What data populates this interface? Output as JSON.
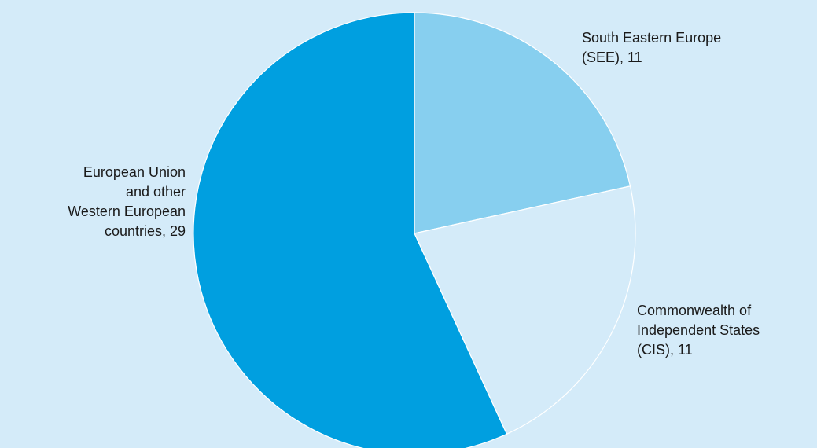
{
  "chart_data": {
    "type": "pie",
    "title": "",
    "start_angle_deg": 0,
    "direction": "clockwise",
    "slices": [
      {
        "label_lines": [
          "South Eastern Europe",
          "(SEE), 11"
        ],
        "category": "South Eastern Europe (SEE)",
        "value": 11,
        "color": "#87cfef"
      },
      {
        "label_lines": [
          "Commonwealth of",
          "Independent States",
          "(CIS), 11"
        ],
        "category": "Commonwealth of Independent States (CIS)",
        "value": 11,
        "color": "#d4ebf9"
      },
      {
        "label_lines": [
          "European Union",
          "and other",
          "Western European",
          "countries, 29"
        ],
        "category": "European Union and other Western European countries",
        "value": 29,
        "color": "#009fe0"
      }
    ]
  },
  "colors": {
    "background": "#d4ebf9",
    "slice_border": "#ffffff",
    "label_text": "#1a1a1a"
  }
}
